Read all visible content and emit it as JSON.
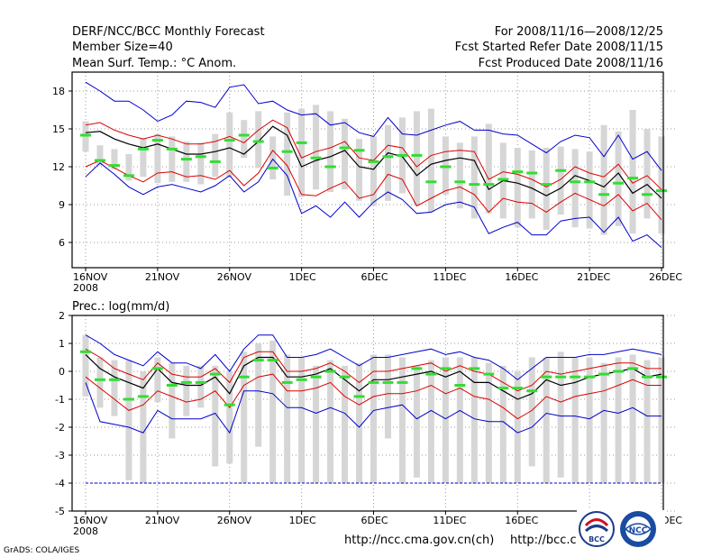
{
  "header": {
    "left_line1": "DERF/NCC/BCC Monthly Forecast",
    "left_line2": "Member Size=40",
    "left_line3": "Mean Surf. Temp.: °C Anom.",
    "right_line1": "For 2008/11/16—2008/12/25",
    "right_line2": "Fcst Started Refer Date 2008/11/15",
    "right_line3": "Fcst Produced Date 2008/11/16"
  },
  "footer": {
    "url1": "http://ncc.cma.gov.cn(ch)",
    "url2": "http://bcc.c",
    "credit": "GrADS: COLA/IGES",
    "logo1_text": "BCC",
    "logo2_text": "NCC"
  },
  "colors": {
    "mean_line": "#000000",
    "spread_line": "#dd0000",
    "envelope_line": "#0000cc",
    "observed_mark": "#33dd33",
    "box": "#d6d6d6",
    "dashed": "#0000cc"
  },
  "chart_data": [
    {
      "type": "line",
      "title": "Mean Surf. Temp.: °C Anom.",
      "x_tick_labels": [
        "16NOV",
        "21NOV",
        "26NOV",
        "1DEC",
        "6DEC",
        "11DEC",
        "16DEC",
        "21DEC",
        "26DEC"
      ],
      "x_sublabel": "2008",
      "y_ticks": [
        "6",
        "9",
        "12",
        "15",
        "18"
      ],
      "ylim": [
        4,
        19.5
      ],
      "days": 41,
      "series": [
        {
          "name": "mean",
          "values": [
            14.7,
            14.8,
            14.2,
            13.8,
            13.5,
            13.8,
            13.4,
            13.0,
            13.0,
            13.2,
            13.5,
            13.0,
            14.0,
            15.2,
            14.5,
            12.0,
            12.5,
            12.8,
            13.3,
            12.0,
            11.8,
            13.1,
            12.8,
            11.3,
            12.2,
            12.5,
            12.7,
            12.5,
            10.2,
            10.9,
            10.7,
            10.3,
            9.7,
            10.3,
            11.3,
            10.9,
            10.4,
            11.5,
            9.9,
            10.6,
            9.5
          ]
        },
        {
          "name": "upper_spread",
          "values": [
            15.3,
            15.5,
            14.9,
            14.5,
            14.2,
            14.5,
            14.2,
            13.8,
            13.8,
            14.0,
            14.4,
            13.9,
            14.9,
            15.7,
            15.1,
            12.7,
            13.2,
            13.5,
            14.0,
            12.7,
            12.5,
            13.7,
            13.5,
            12.0,
            12.9,
            13.2,
            13.3,
            13.2,
            11.0,
            11.6,
            11.4,
            11.0,
            10.4,
            11.0,
            12.0,
            11.5,
            11.2,
            12.2,
            10.7,
            11.3,
            10.2
          ]
        },
        {
          "name": "lower_spread",
          "values": [
            12.0,
            12.5,
            11.9,
            11.3,
            10.8,
            11.5,
            11.6,
            11.2,
            11.3,
            11.0,
            11.7,
            10.5,
            11.5,
            13.3,
            12.1,
            9.8,
            9.7,
            10.3,
            10.8,
            9.5,
            9.8,
            11.4,
            11.0,
            8.9,
            9.5,
            10.1,
            10.4,
            9.8,
            8.4,
            9.5,
            9.2,
            9.1,
            8.4,
            9.2,
            9.9,
            9.4,
            8.9,
            9.8,
            8.5,
            9.1,
            7.8
          ]
        },
        {
          "name": "upper_envelope",
          "values": [
            18.7,
            18.0,
            17.2,
            17.2,
            16.5,
            15.6,
            16.1,
            17.2,
            17.1,
            16.7,
            18.3,
            18.5,
            17.0,
            17.2,
            16.5,
            16.1,
            16.2,
            15.3,
            15.5,
            14.7,
            14.4,
            15.9,
            14.6,
            14.5,
            14.9,
            15.3,
            15.6,
            14.9,
            14.9,
            14.6,
            14.5,
            13.8,
            13.1,
            14.0,
            14.5,
            14.3,
            12.8,
            14.5,
            12.6,
            13.2,
            11.7
          ]
        },
        {
          "name": "lower_envelope",
          "values": [
            11.2,
            12.3,
            11.4,
            10.4,
            9.8,
            10.4,
            10.6,
            10.3,
            10.0,
            10.5,
            11.3,
            10.0,
            10.8,
            12.6,
            11.3,
            8.3,
            8.9,
            8.0,
            9.2,
            8.0,
            9.2,
            10.0,
            9.4,
            8.3,
            8.4,
            9.0,
            9.2,
            8.8,
            6.7,
            7.2,
            7.6,
            6.6,
            6.6,
            7.7,
            7.9,
            8.0,
            6.8,
            8.0,
            6.1,
            6.6,
            5.6
          ]
        },
        {
          "name": "observed",
          "values": [
            14.5,
            12.5,
            12.1,
            11.3,
            13.4,
            14.1,
            13.4,
            12.6,
            12.8,
            12.4,
            14.1,
            14.5,
            14.0,
            11.9,
            13.2,
            13.9,
            12.7,
            12.0,
            13.5,
            13.3,
            12.4,
            12.8,
            12.9,
            12.9,
            10.8,
            12.0,
            10.8,
            10.6,
            10.6,
            11.0,
            11.6,
            11.5,
            10.6,
            11.7,
            10.8,
            10.8,
            9.8,
            10.7,
            11.1,
            9.8,
            10.1
          ]
        }
      ],
      "boxes": [
        [
          13.2,
          15.6
        ],
        [
          12.1,
          13.7
        ],
        [
          11.8,
          13.4
        ],
        [
          10.9,
          13.0
        ],
        [
          11.2,
          14.3
        ],
        [
          10.7,
          14.6
        ],
        [
          10.8,
          14.4
        ],
        [
          10.8,
          14.0
        ],
        [
          10.6,
          13.9
        ],
        [
          11.2,
          14.6
        ],
        [
          11.2,
          16.3
        ],
        [
          12.7,
          15.7
        ],
        [
          11.9,
          16.4
        ],
        [
          11.0,
          14.4
        ],
        [
          9.7,
          16.3
        ],
        [
          9.6,
          16.6
        ],
        [
          10.2,
          16.9
        ],
        [
          10.0,
          16.4
        ],
        [
          10.2,
          15.8
        ],
        [
          9.3,
          14.2
        ],
        [
          8.9,
          14.4
        ],
        [
          9.3,
          15.3
        ],
        [
          9.9,
          15.9
        ],
        [
          8.9,
          16.4
        ],
        [
          8.4,
          16.6
        ],
        [
          9.8,
          14.4
        ],
        [
          8.7,
          13.9
        ],
        [
          7.9,
          14.4
        ],
        [
          8.3,
          15.4
        ],
        [
          7.9,
          13.9
        ],
        [
          7.2,
          13.5
        ],
        [
          7.9,
          13.3
        ],
        [
          7.0,
          13.5
        ],
        [
          8.2,
          13.6
        ],
        [
          7.2,
          13.4
        ],
        [
          7.1,
          13.2
        ],
        [
          6.6,
          15.3
        ],
        [
          7.3,
          14.8
        ],
        [
          6.7,
          16.5
        ],
        [
          7.9,
          15.0
        ],
        [
          6.7,
          14.4
        ]
      ]
    },
    {
      "type": "line",
      "title": "Prec.: log(mm/d)",
      "x_tick_labels": [
        "16NOV",
        "21NOV",
        "26NOV",
        "1DEC",
        "6DEC",
        "11DEC",
        "16DEC",
        "21DEC",
        "26DEC"
      ],
      "x_sublabel": "2008",
      "y_ticks": [
        "-5",
        "-4",
        "-3",
        "-2",
        "-1",
        "0",
        "1",
        "2"
      ],
      "ylim": [
        -5,
        2
      ],
      "days": 41,
      "dashed_line": -4,
      "series": [
        {
          "name": "mean",
          "values": [
            0.6,
            0.1,
            -0.2,
            -0.4,
            -0.6,
            0.1,
            -0.4,
            -0.5,
            -0.5,
            -0.2,
            -0.8,
            0.2,
            0.5,
            0.5,
            -0.2,
            -0.2,
            -0.1,
            0.1,
            -0.3,
            -0.7,
            -0.3,
            -0.3,
            -0.2,
            -0.1,
            0.0,
            -0.2,
            0.0,
            -0.4,
            -0.4,
            -0.7,
            -1.0,
            -0.8,
            -0.3,
            -0.5,
            -0.4,
            -0.2,
            -0.1,
            0.0,
            0.1,
            -0.2,
            -0.1
          ]
        },
        {
          "name": "upper_spread",
          "values": [
            0.8,
            0.5,
            0.1,
            -0.1,
            -0.3,
            0.3,
            -0.1,
            -0.2,
            -0.2,
            0.1,
            -0.4,
            0.5,
            0.7,
            0.7,
            0.0,
            0.0,
            0.1,
            0.3,
            0.0,
            -0.4,
            0.0,
            0.0,
            0.1,
            0.2,
            0.3,
            0.0,
            0.2,
            0.0,
            -0.1,
            -0.4,
            -0.7,
            -0.5,
            0.0,
            -0.1,
            0.0,
            0.1,
            0.2,
            0.3,
            0.3,
            0.1,
            0.1
          ]
        },
        {
          "name": "lower_spread",
          "values": [
            -0.2,
            -0.6,
            -1.0,
            -1.4,
            -1.2,
            -0.7,
            -0.9,
            -1.1,
            -1.0,
            -0.7,
            -1.3,
            -0.5,
            -0.2,
            -0.1,
            -0.7,
            -0.7,
            -0.6,
            -0.4,
            -0.9,
            -1.2,
            -0.9,
            -0.8,
            -0.8,
            -0.7,
            -0.5,
            -0.8,
            -0.6,
            -0.9,
            -1.0,
            -1.3,
            -1.7,
            -1.4,
            -0.9,
            -1.1,
            -0.9,
            -0.8,
            -0.7,
            -0.5,
            -0.3,
            -0.5,
            -0.5
          ]
        },
        {
          "name": "upper_envelope",
          "values": [
            1.3,
            1.0,
            0.6,
            0.4,
            0.2,
            0.7,
            0.3,
            0.3,
            0.1,
            0.6,
            0.0,
            0.8,
            1.3,
            1.3,
            0.5,
            0.5,
            0.6,
            0.8,
            0.5,
            0.2,
            0.5,
            0.5,
            0.6,
            0.7,
            0.8,
            0.6,
            0.7,
            0.5,
            0.4,
            0.1,
            -0.3,
            0.1,
            0.5,
            0.5,
            0.5,
            0.6,
            0.6,
            0.7,
            0.8,
            0.7,
            0.6
          ]
        },
        {
          "name": "lower_envelope",
          "values": [
            -0.4,
            -1.8,
            -1.9,
            -2.0,
            -2.2,
            -1.4,
            -1.7,
            -1.7,
            -1.7,
            -1.5,
            -2.2,
            -0.7,
            -0.7,
            -0.8,
            -1.3,
            -1.3,
            -1.5,
            -1.3,
            -1.5,
            -2.0,
            -1.4,
            -1.3,
            -1.2,
            -1.7,
            -1.4,
            -1.7,
            -1.4,
            -1.7,
            -1.8,
            -1.8,
            -2.2,
            -2.0,
            -1.5,
            -1.6,
            -1.6,
            -1.7,
            -1.4,
            -1.5,
            -1.3,
            -1.6,
            -1.6
          ]
        },
        {
          "name": "observed",
          "values": [
            0.7,
            -0.3,
            -0.3,
            -1.0,
            -0.9,
            0.1,
            -0.5,
            -0.4,
            -0.4,
            -0.1,
            -1.2,
            -0.2,
            0.4,
            0.4,
            -0.4,
            -0.3,
            -0.2,
            0.0,
            -0.2,
            -0.9,
            -0.4,
            -0.4,
            -0.4,
            0.1,
            -0.1,
            0.1,
            -0.5,
            0.1,
            -0.1,
            -0.6,
            -0.6,
            -0.7,
            -0.2,
            -0.2,
            -0.2,
            -0.2,
            -0.1,
            0.0,
            0.1,
            -0.2,
            -0.2
          ]
        }
      ],
      "boxes": [
        [
          -0.9,
          1.3
        ],
        [
          -1.3,
          0.5
        ],
        [
          -1.6,
          0.4
        ],
        [
          -3.9,
          0.4
        ],
        [
          -4.0,
          0.0
        ],
        [
          -1.1,
          0.5
        ],
        [
          -2.4,
          0.3
        ],
        [
          -1.6,
          0.2
        ],
        [
          -1.3,
          0.2
        ],
        [
          -3.4,
          0.2
        ],
        [
          -3.3,
          0.0
        ],
        [
          -4.0,
          0.7
        ],
        [
          -2.7,
          1.0
        ],
        [
          -4.0,
          1.1
        ],
        [
          -4.0,
          0.6
        ],
        [
          -4.0,
          0.5
        ],
        [
          -4.0,
          0.2
        ],
        [
          -4.0,
          0.4
        ],
        [
          -4.0,
          0.2
        ],
        [
          -4.0,
          0.3
        ],
        [
          -4.0,
          0.6
        ],
        [
          -2.4,
          0.6
        ],
        [
          -4.0,
          0.5
        ],
        [
          -3.8,
          0.2
        ],
        [
          -4.0,
          0.4
        ],
        [
          -4.0,
          0.5
        ],
        [
          -4.0,
          0.5
        ],
        [
          -4.0,
          0.5
        ],
        [
          -4.0,
          0.3
        ],
        [
          -4.0,
          0.2
        ],
        [
          -4.0,
          0.0
        ],
        [
          -3.4,
          0.5
        ],
        [
          -4.0,
          0.5
        ],
        [
          -3.8,
          0.7
        ],
        [
          -4.0,
          0.5
        ],
        [
          -4.0,
          0.5
        ],
        [
          -4.0,
          0.3
        ],
        [
          -4.0,
          0.5
        ],
        [
          -4.0,
          0.6
        ],
        [
          -4.0,
          0.4
        ],
        [
          -4.0,
          0.5
        ]
      ]
    }
  ]
}
